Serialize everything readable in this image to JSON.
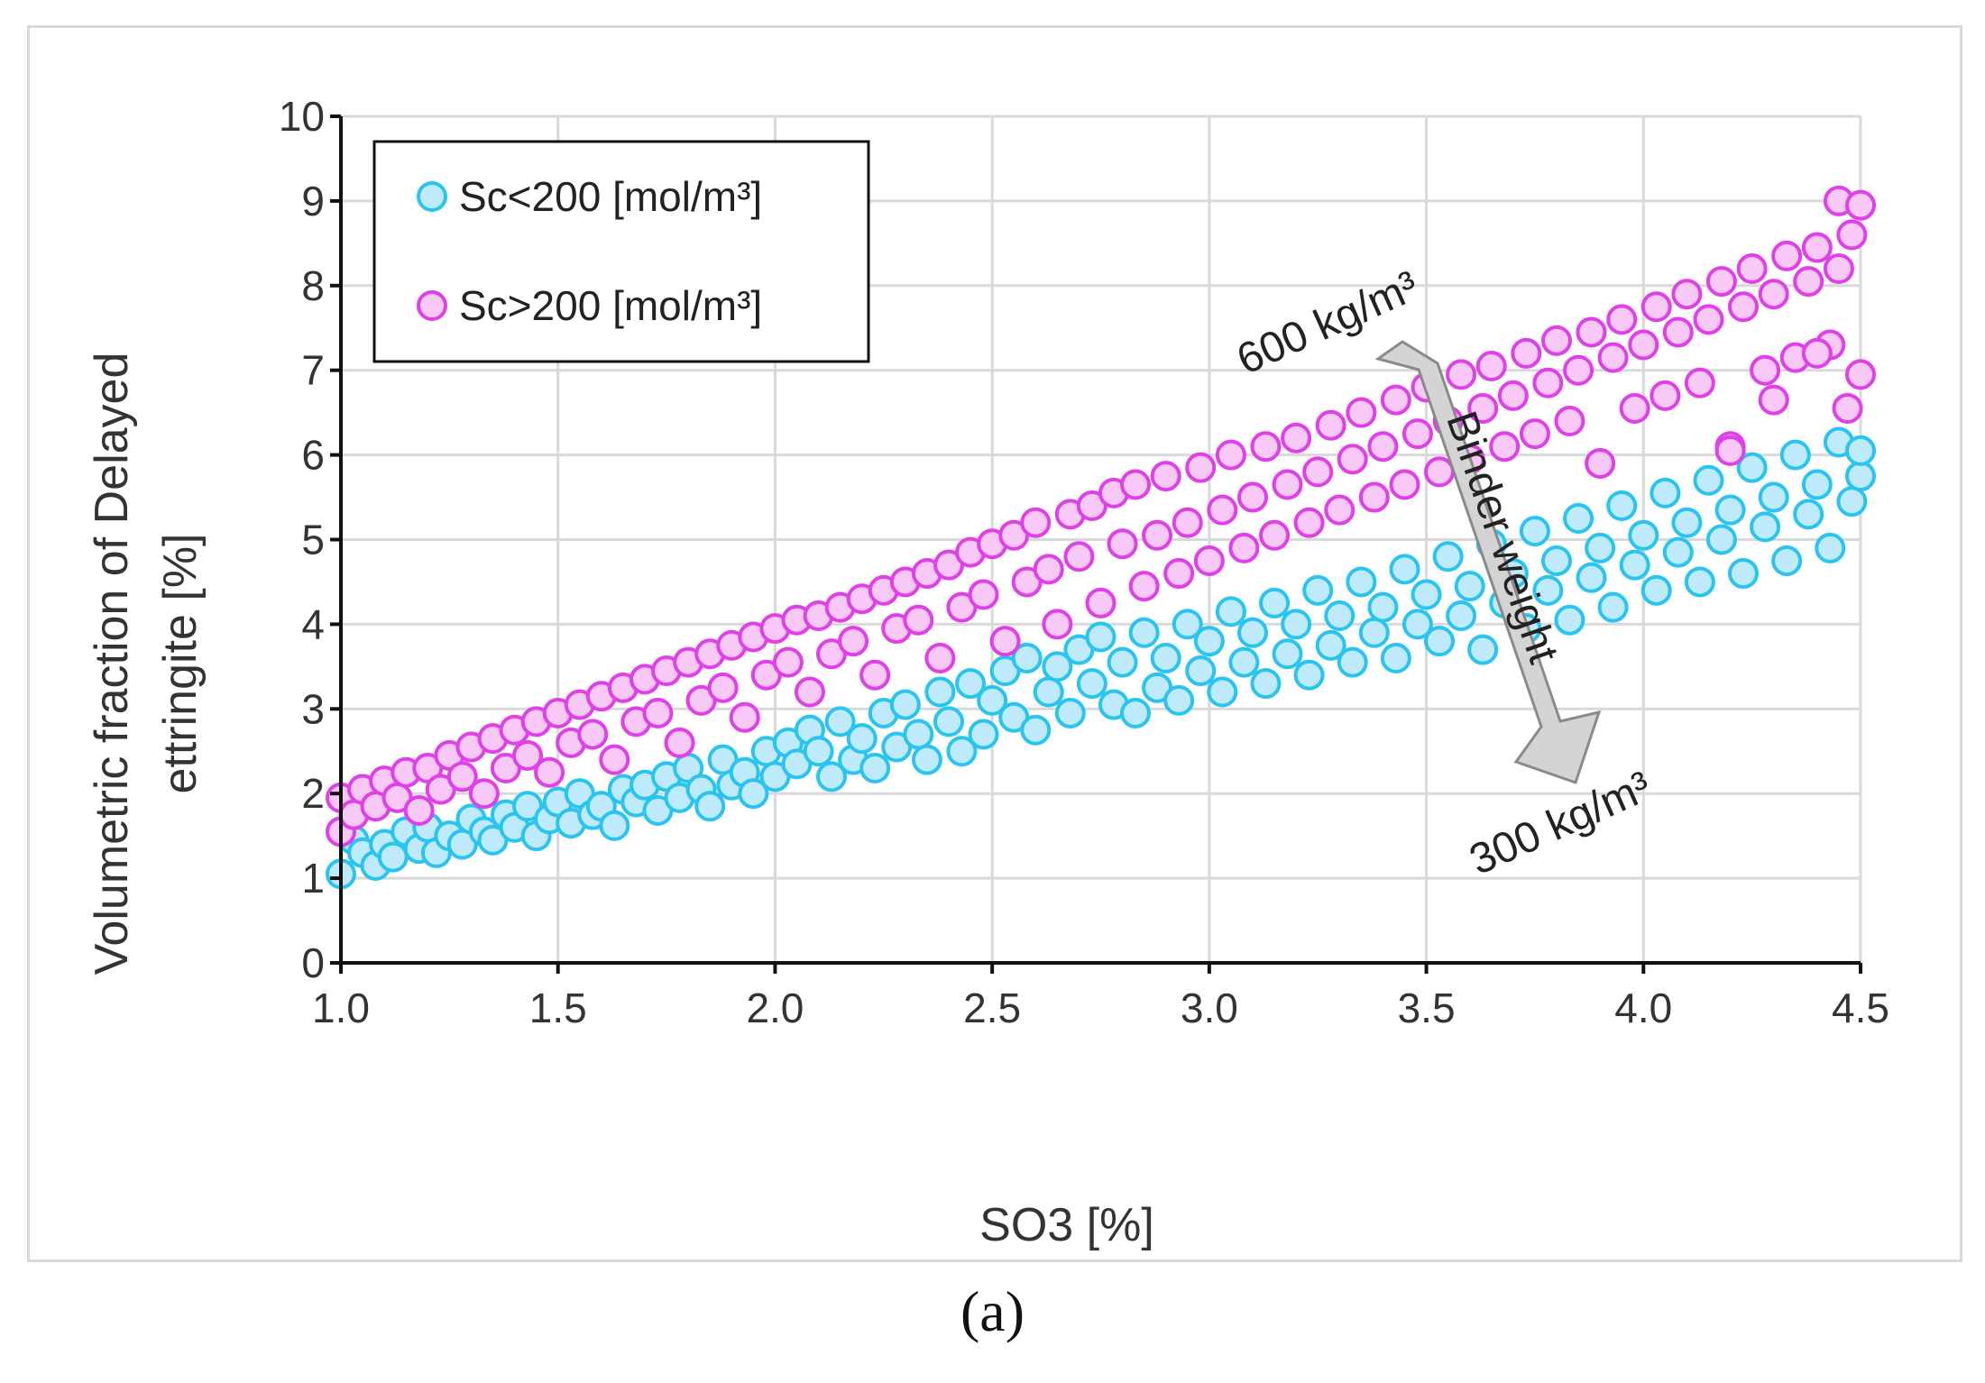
{
  "chart_data": {
    "type": "scatter",
    "title": "",
    "xlabel": "SO3 [%]",
    "ylabel_lines": [
      "Volumetric fraction of Delayed",
      "ettringite [%]"
    ],
    "xlim": [
      1.0,
      4.5
    ],
    "ylim": [
      0,
      10
    ],
    "x_ticks": [
      "1.0",
      "1.5",
      "2.0",
      "2.5",
      "3.0",
      "3.5",
      "4.0",
      "4.5"
    ],
    "y_ticks": [
      "0",
      "1",
      "2",
      "3",
      "4",
      "5",
      "6",
      "7",
      "8",
      "9",
      "10"
    ],
    "grid": true,
    "legend_position": "top-left",
    "series": [
      {
        "name": "Sc<200 [mol/m³]",
        "color": "#29c4f0",
        "fill": "#bfeafb",
        "points": [
          [
            1.0,
            1.05
          ],
          [
            1.03,
            1.45
          ],
          [
            1.05,
            1.3
          ],
          [
            1.08,
            1.15
          ],
          [
            1.1,
            1.4
          ],
          [
            1.12,
            1.25
          ],
          [
            1.15,
            1.55
          ],
          [
            1.18,
            1.35
          ],
          [
            1.2,
            1.6
          ],
          [
            1.22,
            1.3
          ],
          [
            1.25,
            1.5
          ],
          [
            1.28,
            1.4
          ],
          [
            1.3,
            1.7
          ],
          [
            1.33,
            1.55
          ],
          [
            1.35,
            1.45
          ],
          [
            1.38,
            1.75
          ],
          [
            1.4,
            1.6
          ],
          [
            1.43,
            1.85
          ],
          [
            1.45,
            1.5
          ],
          [
            1.48,
            1.7
          ],
          [
            1.5,
            1.9
          ],
          [
            1.53,
            1.65
          ],
          [
            1.55,
            2.0
          ],
          [
            1.58,
            1.75
          ],
          [
            1.6,
            1.85
          ],
          [
            1.63,
            1.62
          ],
          [
            1.65,
            2.05
          ],
          [
            1.68,
            1.9
          ],
          [
            1.7,
            2.1
          ],
          [
            1.73,
            1.8
          ],
          [
            1.75,
            2.2
          ],
          [
            1.78,
            1.95
          ],
          [
            1.8,
            2.3
          ],
          [
            1.83,
            2.05
          ],
          [
            1.85,
            1.85
          ],
          [
            1.88,
            2.4
          ],
          [
            1.9,
            2.1
          ],
          [
            1.93,
            2.25
          ],
          [
            1.95,
            2.0
          ],
          [
            1.98,
            2.5
          ],
          [
            2.0,
            2.2
          ],
          [
            2.03,
            2.6
          ],
          [
            2.05,
            2.35
          ],
          [
            2.08,
            2.75
          ],
          [
            2.1,
            2.5
          ],
          [
            2.13,
            2.2
          ],
          [
            2.15,
            2.85
          ],
          [
            2.18,
            2.4
          ],
          [
            2.2,
            2.65
          ],
          [
            2.23,
            2.3
          ],
          [
            2.25,
            2.95
          ],
          [
            2.28,
            2.55
          ],
          [
            2.3,
            3.05
          ],
          [
            2.33,
            2.7
          ],
          [
            2.35,
            2.4
          ],
          [
            2.38,
            3.2
          ],
          [
            2.4,
            2.85
          ],
          [
            2.43,
            2.5
          ],
          [
            2.45,
            3.3
          ],
          [
            2.48,
            2.7
          ],
          [
            2.5,
            3.1
          ],
          [
            2.53,
            3.45
          ],
          [
            2.55,
            2.9
          ],
          [
            2.58,
            3.6
          ],
          [
            2.6,
            2.75
          ],
          [
            2.63,
            3.2
          ],
          [
            2.65,
            3.5
          ],
          [
            2.68,
            2.95
          ],
          [
            2.7,
            3.7
          ],
          [
            2.73,
            3.3
          ],
          [
            2.75,
            3.85
          ],
          [
            2.78,
            3.05
          ],
          [
            2.8,
            3.55
          ],
          [
            2.83,
            2.95
          ],
          [
            2.85,
            3.9
          ],
          [
            2.88,
            3.25
          ],
          [
            2.9,
            3.6
          ],
          [
            2.93,
            3.1
          ],
          [
            2.95,
            4.0
          ],
          [
            2.98,
            3.45
          ],
          [
            3.0,
            3.8
          ],
          [
            3.03,
            3.2
          ],
          [
            3.05,
            4.15
          ],
          [
            3.08,
            3.55
          ],
          [
            3.1,
            3.9
          ],
          [
            3.13,
            3.3
          ],
          [
            3.15,
            4.25
          ],
          [
            3.18,
            3.65
          ],
          [
            3.2,
            4.0
          ],
          [
            3.23,
            3.4
          ],
          [
            3.25,
            4.4
          ],
          [
            3.28,
            3.75
          ],
          [
            3.3,
            4.1
          ],
          [
            3.33,
            3.55
          ],
          [
            3.35,
            4.5
          ],
          [
            3.38,
            3.9
          ],
          [
            3.4,
            4.2
          ],
          [
            3.43,
            3.6
          ],
          [
            3.45,
            4.65
          ],
          [
            3.48,
            4.0
          ],
          [
            3.5,
            4.35
          ],
          [
            3.53,
            3.8
          ],
          [
            3.55,
            4.8
          ],
          [
            3.58,
            4.1
          ],
          [
            3.6,
            4.45
          ],
          [
            3.63,
            3.7
          ],
          [
            3.65,
            4.95
          ],
          [
            3.68,
            4.25
          ],
          [
            3.7,
            4.6
          ],
          [
            3.73,
            3.95
          ],
          [
            3.75,
            5.1
          ],
          [
            3.78,
            4.4
          ],
          [
            3.8,
            4.75
          ],
          [
            3.83,
            4.05
          ],
          [
            3.85,
            5.25
          ],
          [
            3.88,
            4.55
          ],
          [
            3.9,
            4.9
          ],
          [
            3.93,
            4.2
          ],
          [
            3.95,
            5.4
          ],
          [
            3.98,
            4.7
          ],
          [
            4.0,
            5.05
          ],
          [
            4.03,
            4.4
          ],
          [
            4.05,
            5.55
          ],
          [
            4.08,
            4.85
          ],
          [
            4.1,
            5.2
          ],
          [
            4.13,
            4.5
          ],
          [
            4.15,
            5.7
          ],
          [
            4.18,
            5.0
          ],
          [
            4.2,
            5.35
          ],
          [
            4.23,
            4.6
          ],
          [
            4.25,
            5.85
          ],
          [
            4.28,
            5.15
          ],
          [
            4.3,
            5.5
          ],
          [
            4.33,
            4.75
          ],
          [
            4.35,
            6.0
          ],
          [
            4.38,
            5.3
          ],
          [
            4.4,
            5.65
          ],
          [
            4.43,
            4.9
          ],
          [
            4.45,
            6.15
          ],
          [
            4.48,
            5.45
          ],
          [
            4.5,
            5.75
          ],
          [
            4.5,
            6.05
          ]
        ]
      },
      {
        "name": "Sc>200 [mol/m³]",
        "color": "#e040e8",
        "fill": "#f8c8f6",
        "points": [
          [
            1.0,
            1.55
          ],
          [
            1.0,
            1.95
          ],
          [
            1.03,
            1.75
          ],
          [
            1.05,
            2.05
          ],
          [
            1.08,
            1.85
          ],
          [
            1.1,
            2.15
          ],
          [
            1.13,
            1.95
          ],
          [
            1.15,
            2.25
          ],
          [
            1.18,
            1.8
          ],
          [
            1.2,
            2.3
          ],
          [
            1.23,
            2.05
          ],
          [
            1.25,
            2.45
          ],
          [
            1.28,
            2.2
          ],
          [
            1.3,
            2.55
          ],
          [
            1.33,
            2.0
          ],
          [
            1.35,
            2.65
          ],
          [
            1.38,
            2.3
          ],
          [
            1.4,
            2.75
          ],
          [
            1.43,
            2.45
          ],
          [
            1.45,
            2.85
          ],
          [
            1.48,
            2.25
          ],
          [
            1.5,
            2.95
          ],
          [
            1.53,
            2.6
          ],
          [
            1.55,
            3.05
          ],
          [
            1.58,
            2.7
          ],
          [
            1.6,
            3.15
          ],
          [
            1.63,
            2.4
          ],
          [
            1.65,
            3.25
          ],
          [
            1.68,
            2.85
          ],
          [
            1.7,
            3.35
          ],
          [
            1.73,
            2.95
          ],
          [
            1.75,
            3.45
          ],
          [
            1.78,
            2.6
          ],
          [
            1.8,
            3.55
          ],
          [
            1.83,
            3.1
          ],
          [
            1.85,
            3.65
          ],
          [
            1.88,
            3.25
          ],
          [
            1.9,
            3.75
          ],
          [
            1.93,
            2.9
          ],
          [
            1.95,
            3.85
          ],
          [
            1.98,
            3.4
          ],
          [
            2.0,
            3.95
          ],
          [
            2.03,
            3.55
          ],
          [
            2.05,
            4.05
          ],
          [
            2.08,
            3.2
          ],
          [
            2.1,
            4.1
          ],
          [
            2.13,
            3.65
          ],
          [
            2.15,
            4.2
          ],
          [
            2.18,
            3.8
          ],
          [
            2.2,
            4.3
          ],
          [
            2.23,
            3.4
          ],
          [
            2.25,
            4.4
          ],
          [
            2.28,
            3.95
          ],
          [
            2.3,
            4.5
          ],
          [
            2.33,
            4.05
          ],
          [
            2.35,
            4.6
          ],
          [
            2.38,
            3.6
          ],
          [
            2.4,
            4.7
          ],
          [
            2.43,
            4.2
          ],
          [
            2.45,
            4.85
          ],
          [
            2.48,
            4.35
          ],
          [
            2.5,
            4.95
          ],
          [
            2.53,
            3.8
          ],
          [
            2.55,
            5.05
          ],
          [
            2.58,
            4.5
          ],
          [
            2.6,
            5.2
          ],
          [
            2.63,
            4.65
          ],
          [
            2.65,
            4.0
          ],
          [
            2.68,
            5.3
          ],
          [
            2.7,
            4.8
          ],
          [
            2.73,
            5.4
          ],
          [
            2.75,
            4.25
          ],
          [
            2.78,
            5.55
          ],
          [
            2.8,
            4.95
          ],
          [
            2.83,
            5.65
          ],
          [
            2.85,
            4.45
          ],
          [
            2.88,
            5.05
          ],
          [
            2.9,
            5.75
          ],
          [
            2.93,
            4.6
          ],
          [
            2.95,
            5.2
          ],
          [
            2.98,
            5.85
          ],
          [
            3.0,
            4.75
          ],
          [
            3.03,
            5.35
          ],
          [
            3.05,
            6.0
          ],
          [
            3.08,
            4.9
          ],
          [
            3.1,
            5.5
          ],
          [
            3.13,
            6.1
          ],
          [
            3.15,
            5.05
          ],
          [
            3.18,
            5.65
          ],
          [
            3.2,
            6.2
          ],
          [
            3.23,
            5.2
          ],
          [
            3.25,
            5.8
          ],
          [
            3.28,
            6.35
          ],
          [
            3.3,
            5.35
          ],
          [
            3.33,
            5.95
          ],
          [
            3.35,
            6.5
          ],
          [
            3.38,
            5.5
          ],
          [
            3.4,
            6.1
          ],
          [
            3.43,
            6.65
          ],
          [
            3.45,
            5.65
          ],
          [
            3.48,
            6.25
          ],
          [
            3.5,
            6.8
          ],
          [
            3.53,
            5.8
          ],
          [
            3.55,
            6.4
          ],
          [
            3.58,
            6.95
          ],
          [
            3.6,
            5.95
          ],
          [
            3.63,
            6.55
          ],
          [
            3.65,
            7.05
          ],
          [
            3.68,
            6.1
          ],
          [
            3.7,
            6.7
          ],
          [
            3.73,
            7.2
          ],
          [
            3.75,
            6.25
          ],
          [
            3.78,
            6.85
          ],
          [
            3.8,
            7.35
          ],
          [
            3.83,
            6.4
          ],
          [
            3.85,
            7.0
          ],
          [
            3.88,
            7.45
          ],
          [
            3.9,
            5.9
          ],
          [
            3.93,
            7.15
          ],
          [
            3.95,
            7.6
          ],
          [
            3.98,
            6.55
          ],
          [
            4.0,
            7.3
          ],
          [
            4.03,
            7.75
          ],
          [
            4.05,
            6.7
          ],
          [
            4.08,
            7.45
          ],
          [
            4.1,
            7.9
          ],
          [
            4.13,
            6.85
          ],
          [
            4.15,
            7.6
          ],
          [
            4.18,
            8.05
          ],
          [
            4.2,
            6.1
          ],
          [
            4.23,
            7.75
          ],
          [
            4.25,
            8.2
          ],
          [
            4.28,
            7.0
          ],
          [
            4.3,
            7.9
          ],
          [
            4.33,
            8.35
          ],
          [
            4.35,
            7.15
          ],
          [
            4.38,
            8.05
          ],
          [
            4.4,
            8.45
          ],
          [
            4.43,
            7.3
          ],
          [
            4.45,
            8.2
          ],
          [
            4.48,
            8.6
          ],
          [
            4.45,
            9.0
          ],
          [
            4.5,
            8.95
          ],
          [
            4.5,
            6.95
          ],
          [
            4.47,
            6.55
          ],
          [
            4.4,
            7.2
          ],
          [
            4.3,
            6.65
          ],
          [
            4.2,
            6.05
          ]
        ]
      }
    ],
    "annotations": {
      "top_label": "600 kg/m³",
      "bottom_label": "300 kg/m³",
      "arrow_label": "Binder weight",
      "arrow_color": "#d4d4d4"
    }
  },
  "caption": "(a)"
}
